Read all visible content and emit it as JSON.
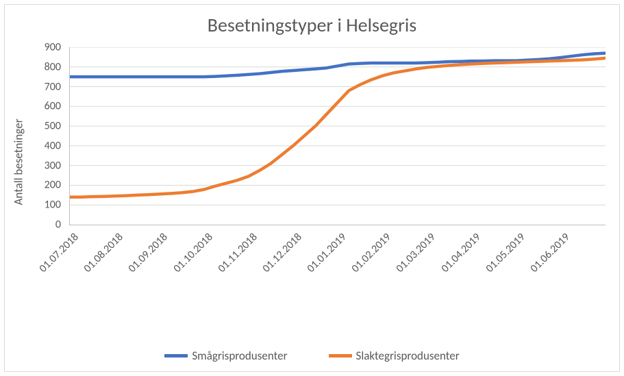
{
  "chart": {
    "type": "line",
    "title": "Besetningstyper i Helsegris",
    "title_fontsize": 28,
    "title_color": "#595959",
    "background_color": "#ffffff",
    "border_color": "#d9d9d9",
    "grid_color": "#d9d9d9",
    "axis_color": "#bfbfbf",
    "tick_label_color": "#595959",
    "tick_label_fontsize": 16,
    "y_axis": {
      "label": "Antall besetninger",
      "label_fontsize": 17,
      "min": 0,
      "max": 900,
      "tick_step": 100,
      "ticks": [
        0,
        100,
        200,
        300,
        400,
        500,
        600,
        700,
        800,
        900
      ]
    },
    "x_axis": {
      "labels": [
        "01.07.2018",
        "01.08.2018",
        "01.09.2018",
        "01.10.2018",
        "01.11.2018",
        "01.12.2018",
        "01.01.2019",
        "01.02.2019",
        "01.03.2019",
        "01.04.2019",
        "01.05.2019",
        "01.06.2019"
      ],
      "label_rotation_deg": -45,
      "n_points": 49
    },
    "series": [
      {
        "name": "Smågrisprodusenter",
        "color": "#4472c4",
        "line_width": 4.5,
        "values": [
          750,
          750,
          750,
          750,
          750,
          750,
          750,
          750,
          750,
          750,
          750,
          750,
          750,
          752,
          755,
          758,
          762,
          766,
          772,
          778,
          782,
          786,
          790,
          795,
          805,
          815,
          818,
          820,
          820,
          820,
          820,
          820,
          822,
          824,
          827,
          828,
          830,
          830,
          832,
          832,
          832,
          835,
          838,
          842,
          848,
          855,
          862,
          867,
          870
        ]
      },
      {
        "name": "Slaktegrisprodusenter",
        "color": "#ed7d31",
        "line_width": 4.5,
        "values": [
          140,
          140,
          142,
          143,
          145,
          147,
          150,
          152,
          155,
          158,
          162,
          168,
          178,
          195,
          210,
          225,
          245,
          275,
          310,
          355,
          400,
          450,
          500,
          560,
          620,
          680,
          710,
          735,
          755,
          770,
          780,
          790,
          798,
          803,
          808,
          812,
          815,
          818,
          820,
          822,
          824,
          826,
          828,
          830,
          832,
          834,
          836,
          840,
          845
        ]
      }
    ],
    "legend": {
      "position": "bottom",
      "items": [
        "Smågrisprodusenter",
        "Slaktegrisprodusenter"
      ],
      "swatch_colors": [
        "#4472c4",
        "#ed7d31"
      ],
      "fontsize": 17
    }
  }
}
